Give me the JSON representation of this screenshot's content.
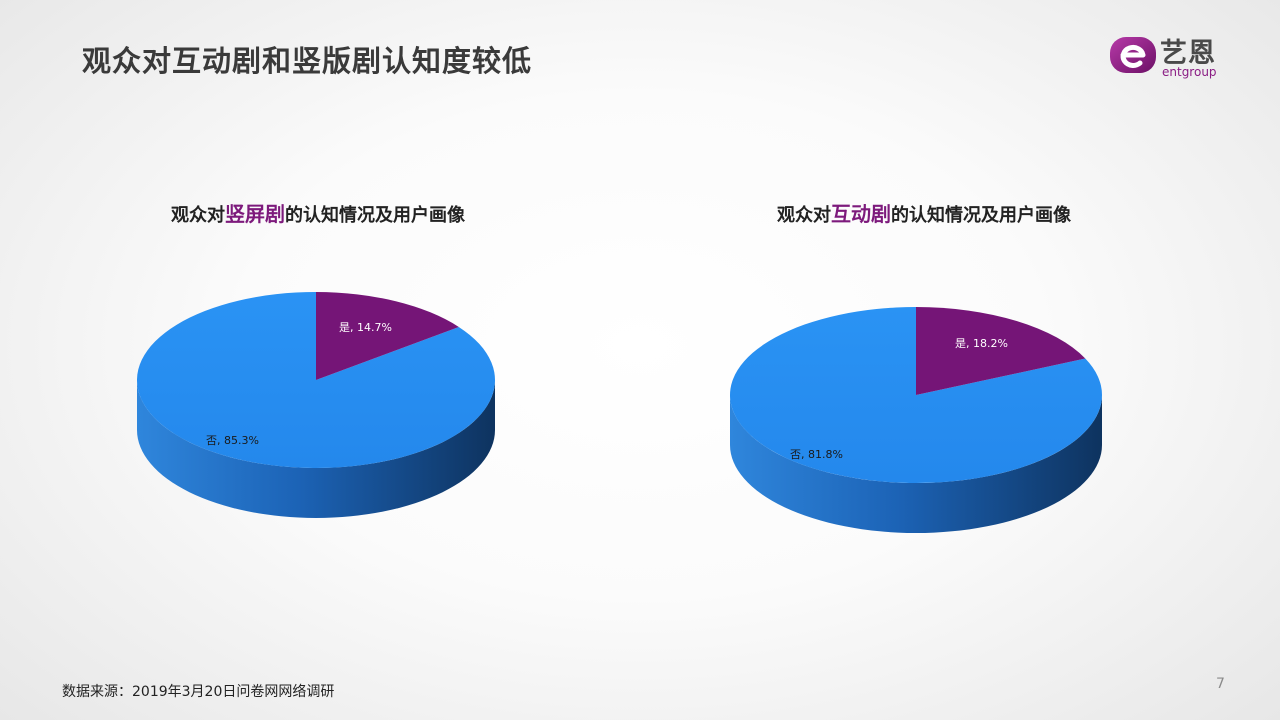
{
  "title": "观众对互动剧和竖版剧认知度较低",
  "logo": {
    "cn": "艺恩",
    "en": "entgroup"
  },
  "source": "数据来源：2019年3月20日问卷网网络调研",
  "page_number": "7",
  "colors": {
    "yes": "#751577",
    "no": "#2b8ff0",
    "side": "#1a5aa8",
    "title_highlight": "#7d1a7c"
  },
  "chart_data": [
    {
      "type": "pie",
      "title_parts": {
        "prefix": "观众对",
        "highlight": "竖屏剧",
        "suffix": "的认知情况及用户画像"
      },
      "categories": [
        "是",
        "否"
      ],
      "values": [
        14.7,
        85.3
      ],
      "labels": [
        "是, 14.7%",
        "否, 85.3%"
      ]
    },
    {
      "type": "pie",
      "title_parts": {
        "prefix": "观众对",
        "highlight": "互动剧",
        "suffix": "的认知情况及用户画像"
      },
      "categories": [
        "是",
        "否"
      ],
      "values": [
        18.2,
        81.8
      ],
      "labels": [
        "是, 18.2%",
        "否, 81.8%"
      ]
    }
  ]
}
